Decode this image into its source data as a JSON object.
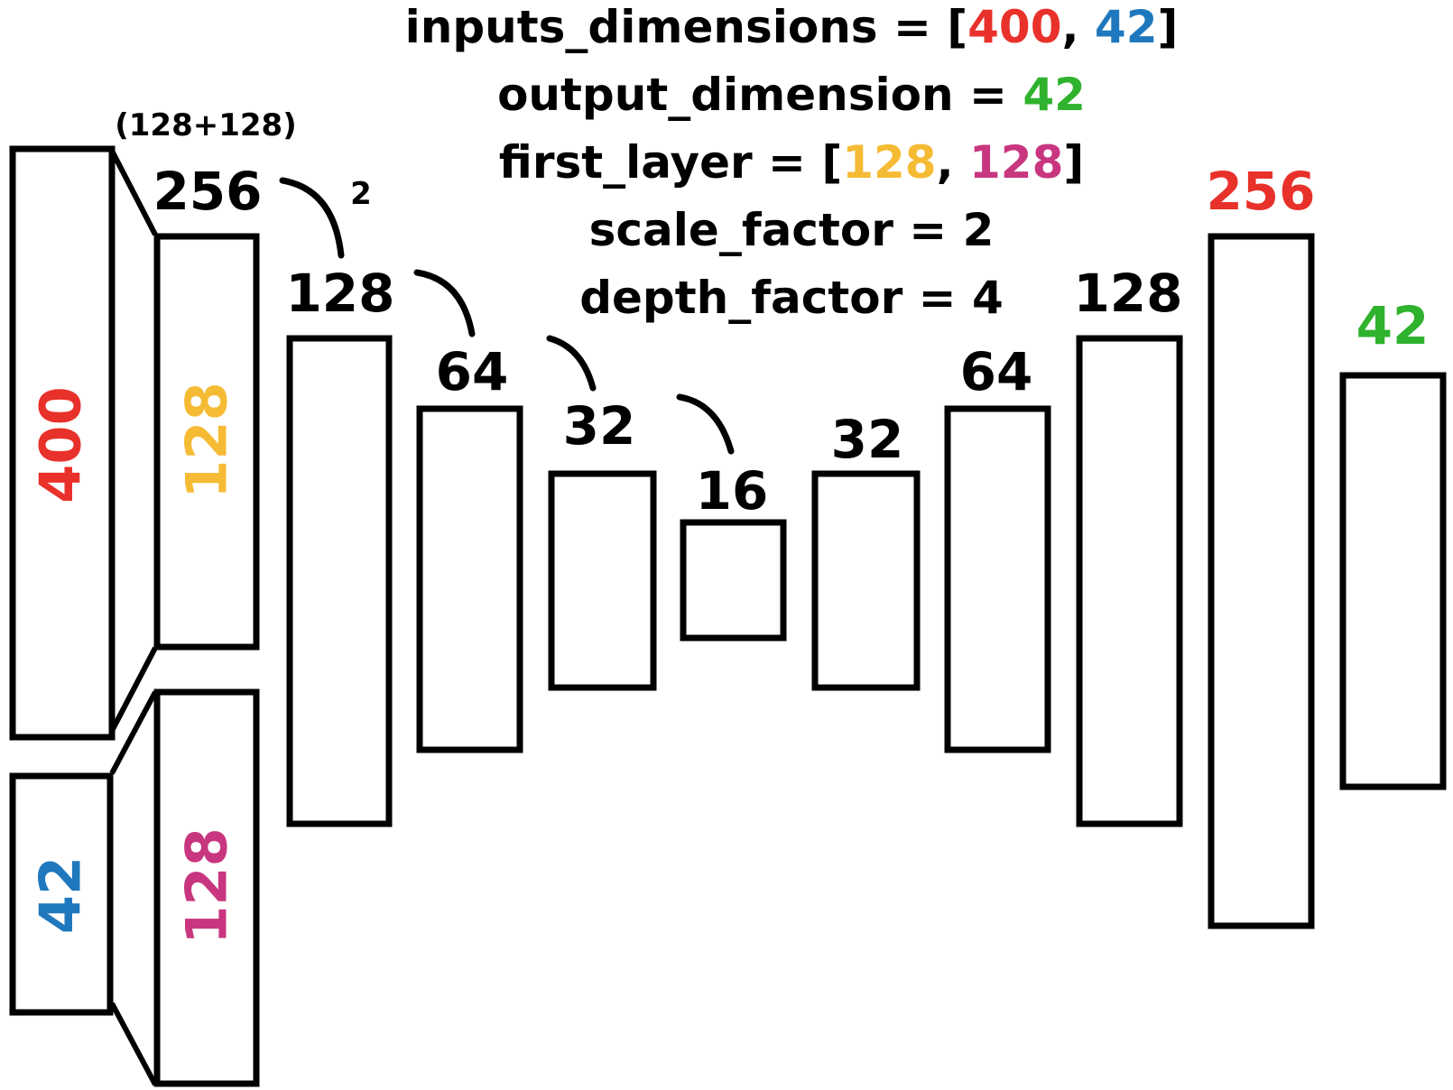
{
  "colors": {
    "red": "#e8312a",
    "blue": "#1f78bd",
    "green": "#2fb22d",
    "yellow": "#f6bb34",
    "magenta": "#c8367f",
    "black": "#000000"
  },
  "params": [
    {
      "parts": [
        {
          "t": "inputs_dimensions = ["
        },
        {
          "t": "400",
          "c": "red"
        },
        {
          "t": ", "
        },
        {
          "t": "42",
          "c": "blue"
        },
        {
          "t": "]"
        }
      ]
    },
    {
      "parts": [
        {
          "t": "output_dimension = "
        },
        {
          "t": "42",
          "c": "green"
        }
      ]
    },
    {
      "parts": [
        {
          "t": "first_layer = ["
        },
        {
          "t": "128",
          "c": "yellow"
        },
        {
          "t": ", "
        },
        {
          "t": "128",
          "c": "magenta"
        },
        {
          "t": "]"
        }
      ]
    },
    {
      "parts": [
        {
          "t": "scale_factor = 2"
        }
      ]
    },
    {
      "parts": [
        {
          "t": "depth_factor = 4"
        }
      ]
    }
  ],
  "annotations": {
    "concat_note": "(128+128)",
    "scale_note": "2"
  },
  "layers": [
    {
      "id": "input-400",
      "label": "400",
      "color": "red"
    },
    {
      "id": "input-42",
      "label": "42",
      "color": "blue"
    },
    {
      "id": "first-128-a",
      "label": "128",
      "color": "yellow"
    },
    {
      "id": "first-128-b",
      "label": "128",
      "color": "magenta"
    },
    {
      "id": "enc-256",
      "label": "256",
      "color": "black"
    },
    {
      "id": "enc-128",
      "label": "128",
      "color": "black"
    },
    {
      "id": "enc-64",
      "label": "64",
      "color": "black"
    },
    {
      "id": "enc-32",
      "label": "32",
      "color": "black"
    },
    {
      "id": "bottleneck-16",
      "label": "16",
      "color": "black"
    },
    {
      "id": "dec-32",
      "label": "32",
      "color": "black"
    },
    {
      "id": "dec-64",
      "label": "64",
      "color": "black"
    },
    {
      "id": "dec-128",
      "label": "128",
      "color": "black"
    },
    {
      "id": "dec-256",
      "label": "256",
      "color": "red"
    },
    {
      "id": "output-42",
      "label": "42",
      "color": "green"
    }
  ]
}
